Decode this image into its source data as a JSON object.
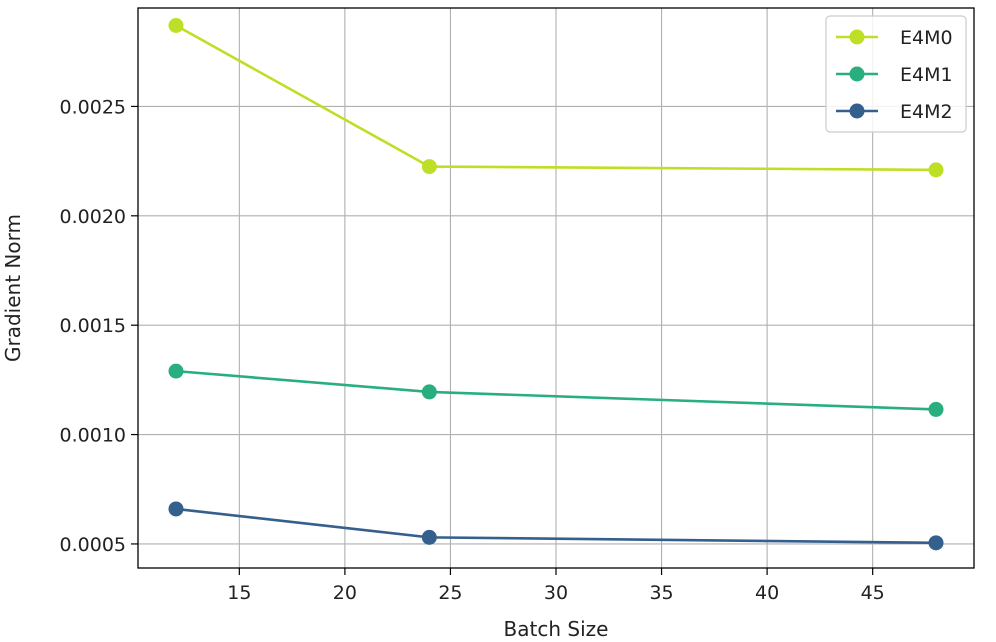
{
  "chart_data": {
    "type": "line",
    "title": "",
    "xlabel": "Batch Size",
    "ylabel": "Gradient Norm",
    "xlim": [
      10.2,
      49.8
    ],
    "ylim": [
      0.00039,
      0.00295
    ],
    "xticks": [
      15,
      20,
      25,
      30,
      35,
      40,
      45
    ],
    "xtick_labels": [
      "15",
      "20",
      "25",
      "30",
      "35",
      "40",
      "45"
    ],
    "yticks": [
      0.0005,
      0.001,
      0.0015,
      0.002,
      0.0025
    ],
    "ytick_labels": [
      "0.0005",
      "0.0010",
      "0.0015",
      "0.0020",
      "0.0025"
    ],
    "grid": true,
    "legend_position": "top-right",
    "x": [
      12,
      24,
      48
    ],
    "series": [
      {
        "name": "E4M0",
        "color": "#bddf26",
        "values": [
          0.00287,
          0.002225,
          0.00221
        ]
      },
      {
        "name": "E4M1",
        "color": "#29af7f",
        "values": [
          0.00129,
          0.001195,
          0.001115
        ]
      },
      {
        "name": "E4M2",
        "color": "#355f8d",
        "values": [
          0.00066,
          0.00053,
          0.000505
        ]
      }
    ]
  }
}
